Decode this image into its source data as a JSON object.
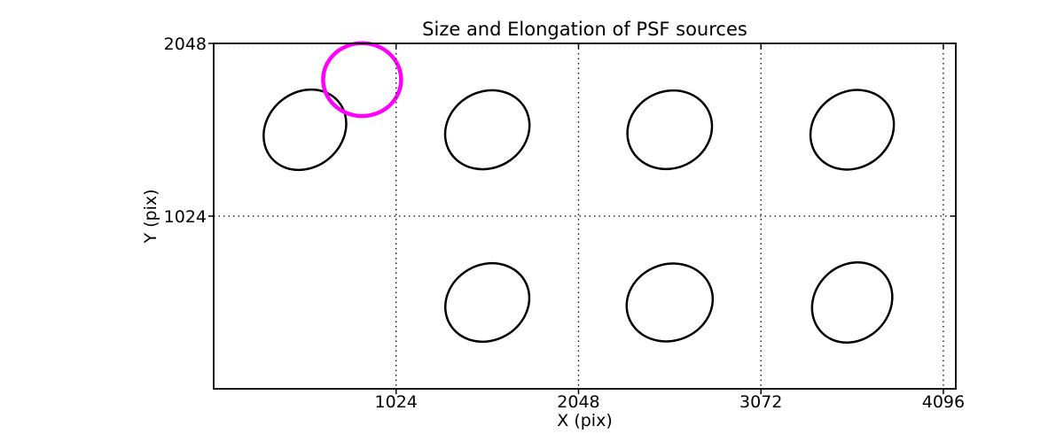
{
  "figure": {
    "background_color": "#ffffff",
    "axis_color": "#000000",
    "highlight_color": "#ff00ff"
  },
  "chart_data": {
    "type": "scatter",
    "subtype": "ellipse-patch-map",
    "title": "Size and Elongation of PSF sources",
    "xlabel": "X (pix)",
    "ylabel": "Y (pix)",
    "xlim": [
      0,
      4166
    ],
    "ylim": [
      0,
      2048
    ],
    "xticks": [
      1024,
      2048,
      3072,
      4096
    ],
    "yticks": [
      1024,
      2048
    ],
    "grid": {
      "visible": true,
      "style": "dotted",
      "color": "#000000",
      "on_xticks": true,
      "on_yticks": true
    },
    "legend": {
      "visible": false
    },
    "ellipses": [
      {
        "name": "psf-ellipse-1",
        "x": 512,
        "y": 1536,
        "a": 246,
        "b": 222,
        "angle": 40,
        "color": "#000000",
        "lw": 2.5
      },
      {
        "name": "psf-ellipse-2",
        "x": 1536,
        "y": 1536,
        "a": 244,
        "b": 226,
        "angle": 30,
        "color": "#000000",
        "lw": 2.5
      },
      {
        "name": "psf-ellipse-3",
        "x": 2560,
        "y": 1536,
        "a": 242,
        "b": 228,
        "angle": 25,
        "color": "#000000",
        "lw": 2.5
      },
      {
        "name": "psf-ellipse-4",
        "x": 3584,
        "y": 1536,
        "a": 244,
        "b": 225,
        "angle": 35,
        "color": "#000000",
        "lw": 2.5
      },
      {
        "name": "psf-ellipse-5",
        "x": 1536,
        "y": 512,
        "a": 243,
        "b": 224,
        "angle": 30,
        "color": "#000000",
        "lw": 2.5
      },
      {
        "name": "psf-ellipse-6",
        "x": 2560,
        "y": 512,
        "a": 245,
        "b": 227,
        "angle": 20,
        "color": "#000000",
        "lw": 2.5
      },
      {
        "name": "psf-ellipse-7",
        "x": 3584,
        "y": 512,
        "a": 240,
        "b": 221,
        "angle": 45,
        "color": "#000000",
        "lw": 2.5
      },
      {
        "name": "highlight-ellipse",
        "x": 833,
        "y": 1833,
        "a": 219,
        "b": 216,
        "angle": 0,
        "color": "#ff00ff",
        "lw": 4.5
      }
    ]
  }
}
